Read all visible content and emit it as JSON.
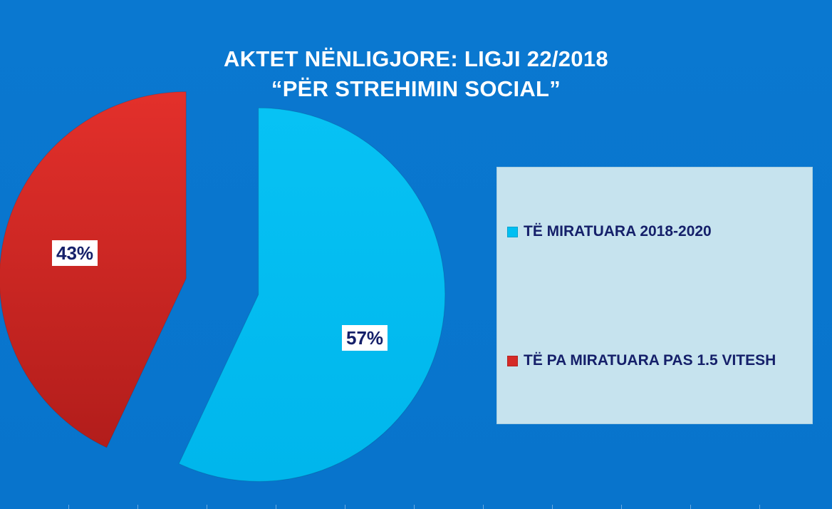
{
  "title_line1": "AKTET NËNLIGJORE: LIGJI 22/2018",
  "title_line2": "“PËR STREHIMIN SOCIAL”",
  "chart_data": {
    "type": "pie",
    "title": "AKTET NËNLIGJORE: LIGJI 22/2018 “PËR STREHIMIN SOCIAL”",
    "categories": [
      "TË MIRATUARA 2018-2020",
      "TË PA MIRATUARA PAS 1.5 VITESH"
    ],
    "values": [
      57,
      43
    ],
    "data_labels": [
      "57%",
      "43%"
    ],
    "colors": [
      "#00bff2",
      "#d52b27"
    ],
    "exploded": true,
    "legend_position": "right"
  },
  "legend": {
    "items": [
      {
        "label": "TË MIRATUARA 2018-2020",
        "color": "#00bff2"
      },
      {
        "label": "TË PA MIRATUARA PAS 1.5 VITESH",
        "color": "#d52b27"
      }
    ]
  }
}
